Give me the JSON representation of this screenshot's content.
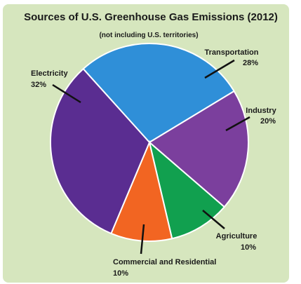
{
  "chart_data": {
    "type": "pie",
    "title": "Sources of U.S. Greenhouse Gas Emissions (2012)",
    "subtitle": "(not including  U.S. territories)",
    "slices": [
      {
        "label": "Transportation",
        "value": 28,
        "value_label": "28%",
        "color": "#2f8fd8"
      },
      {
        "label": "Industry",
        "value": 20,
        "value_label": "20%",
        "color": "#7b3f9d"
      },
      {
        "label": "Agriculture",
        "value": 10,
        "value_label": "10%",
        "color": "#11a04f"
      },
      {
        "label": "Commercial and Residential",
        "value": 10,
        "value_label": "10%",
        "color": "#f26522"
      },
      {
        "label": "Electricity",
        "value": 32,
        "value_label": "32%",
        "color": "#5a2d91"
      }
    ],
    "background_color": "#d6e6be"
  }
}
